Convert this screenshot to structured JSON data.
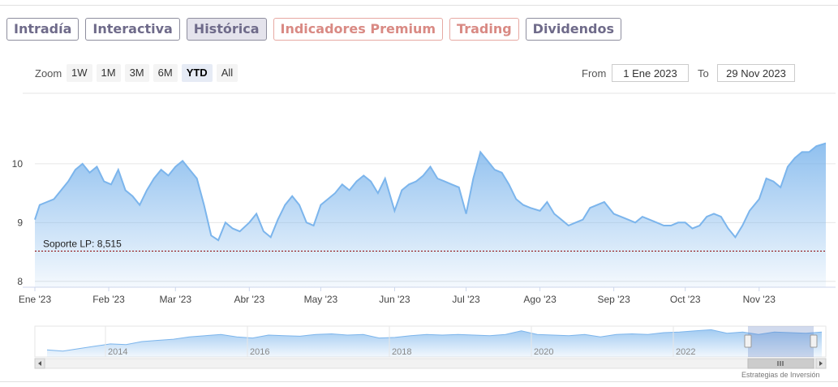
{
  "tabs": [
    {
      "label": "Intradía",
      "active": false,
      "premium": false
    },
    {
      "label": "Interactiva",
      "active": false,
      "premium": false
    },
    {
      "label": "Histórica",
      "active": true,
      "premium": false
    },
    {
      "label": "Indicadores Premium",
      "active": false,
      "premium": true
    },
    {
      "label": "Trading",
      "active": false,
      "premium": true
    },
    {
      "label": "Dividendos",
      "active": false,
      "premium": false
    }
  ],
  "zoom": {
    "label": "Zoom",
    "buttons": [
      "1W",
      "1M",
      "3M",
      "6M",
      "YTD",
      "All"
    ],
    "selected": "YTD"
  },
  "range": {
    "from_label": "From",
    "from_value": "1 Ene 2023",
    "to_label": "To",
    "to_value": "29 Nov 2023"
  },
  "colors": {
    "line": "#7cb5ec",
    "support_line": "#8b0000",
    "tab_premium": "#d98a84"
  },
  "chart_data": {
    "type": "area",
    "x_axis": {
      "type": "datetime",
      "range": [
        "2023-01-01",
        "2023-11-29"
      ],
      "tick_labels": [
        "Ene '23",
        "Feb '23",
        "Mar '23",
        "Abr '23",
        "May '23",
        "Jun '23",
        "Jul '23",
        "Ago '23",
        "Sep '23",
        "Oct '23",
        "Nov '23"
      ],
      "tick_dates": [
        "2023-01-01",
        "2023-02-01",
        "2023-03-01",
        "2023-04-01",
        "2023-05-01",
        "2023-06-01",
        "2023-07-01",
        "2023-08-01",
        "2023-09-01",
        "2023-10-01",
        "2023-11-01"
      ]
    },
    "y_axis": {
      "min": 7.9,
      "max": 11.2,
      "tick_values": [
        8,
        9,
        10
      ],
      "tick_labels": [
        "8",
        "9",
        "10"
      ],
      "grid": true
    },
    "series": [
      {
        "x": [
          "2023-01-01",
          "2023-01-03",
          "2023-01-06",
          "2023-01-09",
          "2023-01-12",
          "2023-01-15",
          "2023-01-18",
          "2023-01-21",
          "2023-01-24",
          "2023-01-27",
          "2023-01-30",
          "2023-02-02",
          "2023-02-05",
          "2023-02-08",
          "2023-02-11",
          "2023-02-14",
          "2023-02-17",
          "2023-02-20",
          "2023-02-23",
          "2023-02-26",
          "2023-03-01",
          "2023-03-04",
          "2023-03-07",
          "2023-03-10",
          "2023-03-13",
          "2023-03-16",
          "2023-03-19",
          "2023-03-22",
          "2023-03-25",
          "2023-03-28",
          "2023-04-01",
          "2023-04-04",
          "2023-04-07",
          "2023-04-10",
          "2023-04-13",
          "2023-04-16",
          "2023-04-19",
          "2023-04-22",
          "2023-04-25",
          "2023-04-28",
          "2023-05-01",
          "2023-05-04",
          "2023-05-07",
          "2023-05-10",
          "2023-05-13",
          "2023-05-16",
          "2023-05-19",
          "2023-05-22",
          "2023-05-25",
          "2023-05-28",
          "2023-06-01",
          "2023-06-04",
          "2023-06-07",
          "2023-06-10",
          "2023-06-13",
          "2023-06-16",
          "2023-06-19",
          "2023-06-22",
          "2023-06-25",
          "2023-06-28",
          "2023-07-01",
          "2023-07-04",
          "2023-07-07",
          "2023-07-10",
          "2023-07-13",
          "2023-07-16",
          "2023-07-19",
          "2023-07-22",
          "2023-07-25",
          "2023-07-28",
          "2023-08-01",
          "2023-08-04",
          "2023-08-07",
          "2023-08-10",
          "2023-08-13",
          "2023-08-16",
          "2023-08-19",
          "2023-08-22",
          "2023-08-25",
          "2023-08-28",
          "2023-09-01",
          "2023-09-04",
          "2023-09-07",
          "2023-09-10",
          "2023-09-13",
          "2023-09-16",
          "2023-09-19",
          "2023-09-22",
          "2023-09-25",
          "2023-09-28",
          "2023-10-01",
          "2023-10-04",
          "2023-10-07",
          "2023-10-10",
          "2023-10-13",
          "2023-10-16",
          "2023-10-19",
          "2023-10-22",
          "2023-10-25",
          "2023-10-28",
          "2023-11-01",
          "2023-11-04",
          "2023-11-07",
          "2023-11-10",
          "2023-11-13",
          "2023-11-16",
          "2023-11-19",
          "2023-11-22",
          "2023-11-25",
          "2023-11-29"
        ],
        "values": [
          9.05,
          9.3,
          9.35,
          9.4,
          9.55,
          9.7,
          9.9,
          10.0,
          9.85,
          9.95,
          9.7,
          9.65,
          9.9,
          9.55,
          9.45,
          9.3,
          9.55,
          9.75,
          9.9,
          9.8,
          9.95,
          10.05,
          9.9,
          9.75,
          9.3,
          8.78,
          8.7,
          9.0,
          8.9,
          8.85,
          9.0,
          9.15,
          8.85,
          8.75,
          9.05,
          9.3,
          9.45,
          9.3,
          9.0,
          8.95,
          9.3,
          9.4,
          9.5,
          9.65,
          9.55,
          9.7,
          9.8,
          9.7,
          9.5,
          9.75,
          9.2,
          9.55,
          9.65,
          9.7,
          9.8,
          9.95,
          9.75,
          9.7,
          9.65,
          9.6,
          9.15,
          9.75,
          10.2,
          10.05,
          9.9,
          9.85,
          9.65,
          9.4,
          9.3,
          9.25,
          9.2,
          9.35,
          9.15,
          9.05,
          8.95,
          9.0,
          9.05,
          9.25,
          9.3,
          9.35,
          9.15,
          9.1,
          9.05,
          9.0,
          9.1,
          9.05,
          9.0,
          8.95,
          8.95,
          9.0,
          9.0,
          8.9,
          8.95,
          9.1,
          9.15,
          9.1,
          8.9,
          8.75,
          8.95,
          9.2,
          9.4,
          9.75,
          9.7,
          9.6,
          9.95,
          10.1,
          10.2,
          10.2,
          10.3,
          10.35
        ]
      }
    ],
    "annotations": [
      {
        "type": "horizontal-line",
        "y": 8.515,
        "label": "Soporte LP: 8,515",
        "style": "dashed"
      }
    ],
    "navigator": {
      "tick_labels": [
        "2014",
        "2016",
        "2018",
        "2020",
        "2022"
      ],
      "values": [
        7.6,
        7.5,
        7.7,
        7.9,
        8.1,
        8.05,
        8.3,
        8.4,
        8.5,
        8.7,
        8.8,
        8.9,
        8.7,
        8.6,
        8.85,
        8.8,
        8.75,
        8.9,
        8.95,
        8.85,
        8.9,
        8.6,
        8.65,
        8.8,
        8.9,
        8.85,
        8.9,
        8.85,
        8.8,
        8.9,
        9.2,
        8.9,
        8.85,
        8.8,
        8.9,
        8.7,
        8.9,
        8.95,
        8.9,
        9.05,
        9.1,
        9.2,
        9.3,
        9.0,
        9.1,
        8.9,
        9.1,
        9.05,
        9.0,
        9.1
      ]
    }
  },
  "watermark": "Estrategias de Inversión"
}
